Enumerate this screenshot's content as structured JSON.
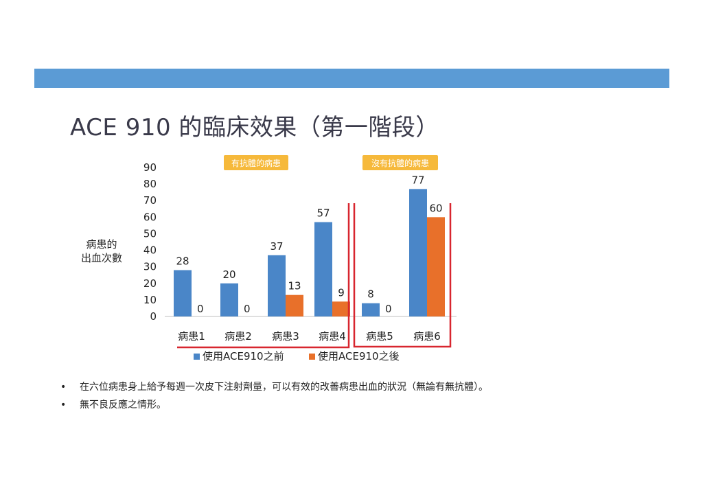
{
  "slide": {
    "title": "ACE 910 的臨床效果（第一階段）"
  },
  "chart_data": {
    "type": "bar",
    "ylabel": "病患的\n出血次數",
    "ylim": [
      0,
      90
    ],
    "yticks": [
      0,
      10,
      20,
      30,
      40,
      50,
      60,
      70,
      80,
      90
    ],
    "categories": [
      "病患1",
      "病患2",
      "病患3",
      "病患4",
      "病患5",
      "病患6"
    ],
    "series": [
      {
        "name": "使用ACE910之前",
        "color": "#4a86c8",
        "values": [
          28,
          20,
          37,
          57,
          8,
          77
        ]
      },
      {
        "name": "使用ACE910之後",
        "color": "#e8702a",
        "values": [
          0,
          0,
          13,
          9,
          0,
          60
        ]
      }
    ],
    "groups": [
      {
        "label": "有抗體的病患"
      },
      {
        "label": "沒有抗體的病患"
      }
    ],
    "legend_position": "bottom",
    "grid": false
  },
  "colors": {
    "bracket": "#d8262f",
    "group_badge_bg": "#f6b93b",
    "group_badge_text": "#ffffff",
    "top_bar": "#5b9bd5"
  },
  "bullets": [
    "在六位病患身上給予每週一次皮下注射劑量，可以有效的改善病患出血的狀況（無論有無抗體）。",
    "無不良反應之情形。"
  ]
}
